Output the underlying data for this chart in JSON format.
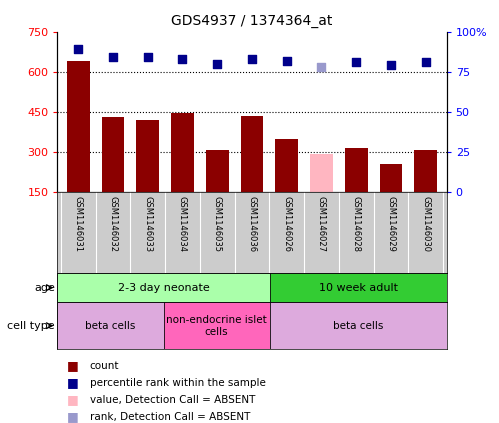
{
  "title": "GDS4937 / 1374364_at",
  "samples": [
    "GSM1146031",
    "GSM1146032",
    "GSM1146033",
    "GSM1146034",
    "GSM1146035",
    "GSM1146036",
    "GSM1146026",
    "GSM1146027",
    "GSM1146028",
    "GSM1146029",
    "GSM1146030"
  ],
  "bar_values": [
    640,
    430,
    420,
    445,
    310,
    435,
    350,
    295,
    315,
    255,
    310
  ],
  "bar_colors": [
    "#8B0000",
    "#8B0000",
    "#8B0000",
    "#8B0000",
    "#8B0000",
    "#8B0000",
    "#8B0000",
    "#FFB6C1",
    "#8B0000",
    "#8B0000",
    "#8B0000"
  ],
  "rank_values": [
    89,
    84,
    84,
    83,
    80,
    83,
    82,
    78,
    81,
    79,
    81
  ],
  "rank_colors": [
    "#00008B",
    "#00008B",
    "#00008B",
    "#00008B",
    "#00008B",
    "#00008B",
    "#00008B",
    "#9999CC",
    "#00008B",
    "#00008B",
    "#00008B"
  ],
  "ylim_left": [
    150,
    750
  ],
  "ylim_right": [
    0,
    100
  ],
  "yticks_left": [
    150,
    300,
    450,
    600,
    750
  ],
  "yticks_right": [
    0,
    25,
    50,
    75,
    100
  ],
  "ytick_right_labels": [
    "0",
    "25",
    "50",
    "75",
    "100%"
  ],
  "hlines": [
    300,
    450,
    600
  ],
  "age_groups": [
    {
      "label": "2-3 day neonate",
      "start": 0,
      "end": 6,
      "color": "#AAFFAA"
    },
    {
      "label": "10 week adult",
      "start": 6,
      "end": 11,
      "color": "#33CC33"
    }
  ],
  "cell_groups": [
    {
      "label": "beta cells",
      "start": 0,
      "end": 3,
      "color": "#DDAADD"
    },
    {
      "label": "non-endocrine islet\ncells",
      "start": 3,
      "end": 6,
      "color": "#FF66BB"
    },
    {
      "label": "beta cells",
      "start": 6,
      "end": 11,
      "color": "#DDAADD"
    }
  ],
  "legend_items": [
    {
      "label": "count",
      "color": "#8B0000"
    },
    {
      "label": "percentile rank within the sample",
      "color": "#00008B"
    },
    {
      "label": "value, Detection Call = ABSENT",
      "color": "#FFB6C1"
    },
    {
      "label": "rank, Detection Call = ABSENT",
      "color": "#9999CC"
    }
  ]
}
